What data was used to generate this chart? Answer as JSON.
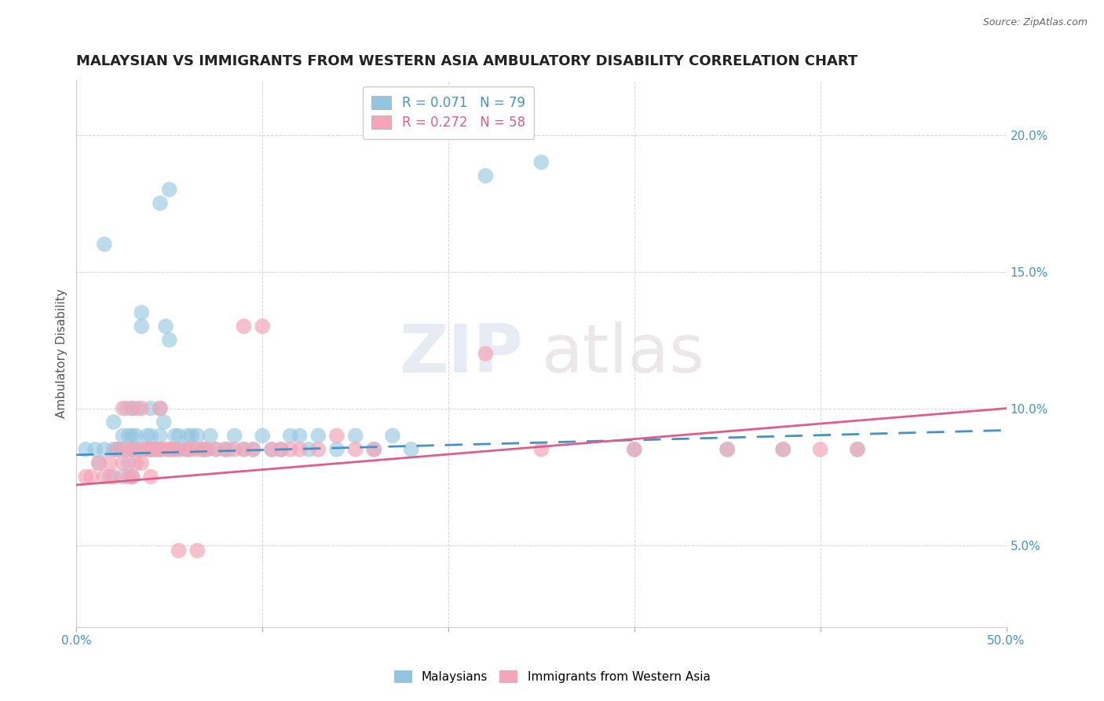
{
  "title": "MALAYSIAN VS IMMIGRANTS FROM WESTERN ASIA AMBULATORY DISABILITY CORRELATION CHART",
  "source": "Source: ZipAtlas.com",
  "ylabel": "Ambulatory Disability",
  "xlabel": "",
  "xlim": [
    0.0,
    0.5
  ],
  "ylim": [
    0.02,
    0.22
  ],
  "yticks": [
    0.05,
    0.1,
    0.15,
    0.2
  ],
  "ytick_labels": [
    "5.0%",
    "10.0%",
    "15.0%",
    "20.0%"
  ],
  "xtick_labels_show": [
    "0.0%",
    "50.0%"
  ],
  "blue_color": "#92c5de",
  "pink_color": "#f4a6b8",
  "blue_line_color": "#4393c3",
  "pink_line_color": "#e05c8a",
  "axis_tick_color": "#4393c3",
  "background_color": "#ffffff",
  "title_fontsize": 13,
  "blue_scatter_x": [
    0.005,
    0.01,
    0.012,
    0.015,
    0.015,
    0.018,
    0.02,
    0.02,
    0.022,
    0.022,
    0.025,
    0.025,
    0.025,
    0.027,
    0.028,
    0.028,
    0.03,
    0.03,
    0.03,
    0.03,
    0.032,
    0.032,
    0.033,
    0.035,
    0.035,
    0.035,
    0.038,
    0.038,
    0.04,
    0.04,
    0.04,
    0.04,
    0.042,
    0.043,
    0.045,
    0.045,
    0.045,
    0.047,
    0.048,
    0.05,
    0.05,
    0.052,
    0.053,
    0.055,
    0.055,
    0.058,
    0.06,
    0.06,
    0.062,
    0.065,
    0.068,
    0.07,
    0.072,
    0.075,
    0.08,
    0.082,
    0.085,
    0.09,
    0.095,
    0.1,
    0.105,
    0.11,
    0.115,
    0.12,
    0.125,
    0.13,
    0.14,
    0.15,
    0.16,
    0.17,
    0.18,
    0.22,
    0.25,
    0.3,
    0.35,
    0.38,
    0.42,
    0.045,
    0.05
  ],
  "blue_scatter_y": [
    0.085,
    0.085,
    0.08,
    0.16,
    0.085,
    0.075,
    0.085,
    0.095,
    0.085,
    0.085,
    0.085,
    0.09,
    0.075,
    0.1,
    0.09,
    0.08,
    0.1,
    0.085,
    0.09,
    0.075,
    0.085,
    0.09,
    0.1,
    0.085,
    0.13,
    0.135,
    0.09,
    0.085,
    0.085,
    0.09,
    0.1,
    0.085,
    0.085,
    0.085,
    0.09,
    0.085,
    0.1,
    0.095,
    0.13,
    0.085,
    0.125,
    0.085,
    0.09,
    0.09,
    0.085,
    0.085,
    0.09,
    0.085,
    0.09,
    0.09,
    0.085,
    0.085,
    0.09,
    0.085,
    0.085,
    0.085,
    0.09,
    0.085,
    0.085,
    0.09,
    0.085,
    0.085,
    0.09,
    0.09,
    0.085,
    0.09,
    0.085,
    0.09,
    0.085,
    0.09,
    0.085,
    0.185,
    0.19,
    0.085,
    0.085,
    0.085,
    0.085,
    0.175,
    0.18
  ],
  "pink_scatter_x": [
    0.005,
    0.008,
    0.012,
    0.015,
    0.018,
    0.02,
    0.022,
    0.025,
    0.027,
    0.028,
    0.03,
    0.03,
    0.032,
    0.035,
    0.035,
    0.038,
    0.04,
    0.04,
    0.042,
    0.045,
    0.045,
    0.048,
    0.05,
    0.052,
    0.055,
    0.06,
    0.062,
    0.065,
    0.068,
    0.07,
    0.075,
    0.08,
    0.085,
    0.09,
    0.09,
    0.095,
    0.1,
    0.105,
    0.11,
    0.115,
    0.12,
    0.13,
    0.14,
    0.15,
    0.16,
    0.22,
    0.25,
    0.3,
    0.35,
    0.38,
    0.4,
    0.42,
    0.025,
    0.03,
    0.035,
    0.045,
    0.055,
    0.065
  ],
  "pink_scatter_y": [
    0.075,
    0.075,
    0.08,
    0.075,
    0.08,
    0.075,
    0.085,
    0.08,
    0.085,
    0.075,
    0.085,
    0.075,
    0.08,
    0.085,
    0.08,
    0.085,
    0.085,
    0.075,
    0.085,
    0.085,
    0.085,
    0.085,
    0.085,
    0.085,
    0.085,
    0.085,
    0.085,
    0.085,
    0.085,
    0.085,
    0.085,
    0.085,
    0.085,
    0.085,
    0.13,
    0.085,
    0.13,
    0.085,
    0.085,
    0.085,
    0.085,
    0.085,
    0.09,
    0.085,
    0.085,
    0.12,
    0.085,
    0.085,
    0.085,
    0.085,
    0.085,
    0.085,
    0.1,
    0.1,
    0.1,
    0.1,
    0.048,
    0.048
  ]
}
